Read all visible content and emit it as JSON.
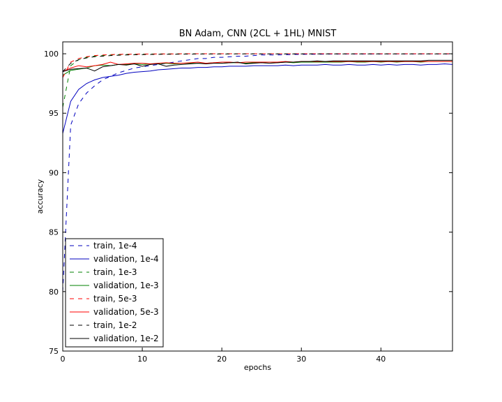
{
  "chart_data": {
    "type": "line",
    "title": "BN Adam, CNN (2CL + 1HL) MNIST",
    "xlabel": "epochs",
    "ylabel": "accuracy",
    "xlim": [
      0,
      49
    ],
    "ylim": [
      75,
      101
    ],
    "x_ticks": [
      "0",
      "10",
      "20",
      "30",
      "40"
    ],
    "y_ticks": [
      "75",
      "80",
      "85",
      "90",
      "95",
      "100"
    ],
    "grid": false,
    "legend_position": "lower-left",
    "x": [
      0,
      1,
      2,
      3,
      4,
      5,
      6,
      7,
      8,
      9,
      10,
      11,
      12,
      13,
      14,
      15,
      16,
      17,
      18,
      19,
      20,
      21,
      22,
      23,
      24,
      25,
      26,
      27,
      28,
      29,
      30,
      31,
      32,
      33,
      34,
      35,
      36,
      37,
      38,
      39,
      40,
      41,
      42,
      43,
      44,
      45,
      46,
      47,
      48,
      49
    ],
    "series": [
      {
        "name": "train, 1e-4",
        "color": "#0000bf",
        "dash": true,
        "values": [
          80.0,
          94.0,
          95.8,
          96.7,
          97.3,
          97.8,
          98.1,
          98.4,
          98.6,
          98.8,
          98.9,
          99.0,
          99.1,
          99.2,
          99.3,
          99.4,
          99.5,
          99.6,
          99.6,
          99.7,
          99.7,
          99.75,
          99.8,
          99.8,
          99.85,
          99.9,
          99.9,
          99.9,
          99.92,
          99.94,
          99.95,
          99.96,
          99.96,
          99.97,
          99.97,
          99.98,
          99.98,
          99.98,
          99.98,
          99.98,
          99.98,
          99.99,
          99.99,
          99.99,
          99.99,
          99.99,
          99.99,
          99.99,
          99.99,
          99.99
        ]
      },
      {
        "name": "validation, 1e-4",
        "color": "#0000bf",
        "dash": false,
        "values": [
          93.3,
          96.0,
          97.0,
          97.5,
          97.8,
          98.0,
          98.1,
          98.2,
          98.35,
          98.45,
          98.5,
          98.55,
          98.65,
          98.7,
          98.75,
          98.8,
          98.8,
          98.85,
          98.85,
          98.9,
          98.9,
          98.95,
          98.95,
          98.95,
          99.0,
          99.0,
          99.0,
          99.0,
          99.05,
          99.0,
          99.05,
          99.05,
          99.05,
          99.1,
          99.05,
          99.05,
          99.1,
          99.05,
          99.05,
          99.1,
          99.05,
          99.1,
          99.05,
          99.1,
          99.1,
          99.05,
          99.1,
          99.1,
          99.15,
          99.1
        ]
      },
      {
        "name": "train, 1e-3",
        "color": "#008000",
        "dash": true,
        "values": [
          95.5,
          99.0,
          99.5,
          99.7,
          99.8,
          99.85,
          99.9,
          99.93,
          99.95,
          99.96,
          99.97,
          99.98,
          99.98,
          99.99,
          99.99,
          99.99,
          100,
          100,
          100,
          100,
          100,
          100,
          100,
          100,
          100,
          100,
          100,
          100,
          100,
          100,
          100,
          100,
          100,
          100,
          100,
          100,
          100,
          100,
          100,
          100,
          100,
          100,
          100,
          100,
          100,
          100,
          100,
          100,
          100,
          100
        ]
      },
      {
        "name": "validation, 1e-3",
        "color": "#008000",
        "dash": false,
        "values": [
          98.2,
          98.6,
          98.7,
          98.8,
          99.0,
          99.05,
          99.0,
          99.1,
          99.1,
          99.15,
          99.1,
          99.15,
          99.15,
          99.2,
          99.15,
          99.2,
          99.2,
          99.2,
          99.2,
          99.25,
          99.2,
          99.25,
          99.25,
          99.2,
          99.25,
          99.25,
          99.3,
          99.25,
          99.3,
          99.25,
          99.3,
          99.3,
          99.3,
          99.3,
          99.3,
          99.3,
          99.35,
          99.3,
          99.3,
          99.35,
          99.3,
          99.35,
          99.3,
          99.35,
          99.35,
          99.3,
          99.35,
          99.35,
          99.35,
          99.35
        ]
      },
      {
        "name": "train, 5e-3",
        "color": "#ff0000",
        "dash": true,
        "values": [
          98.0,
          99.3,
          99.6,
          99.75,
          99.85,
          99.9,
          99.93,
          99.95,
          99.96,
          99.97,
          99.98,
          99.98,
          99.99,
          99.99,
          99.99,
          100,
          100,
          100,
          100,
          100,
          100,
          100,
          100,
          100,
          100,
          100,
          100,
          100,
          100,
          100,
          100,
          100,
          100,
          100,
          100,
          100,
          100,
          100,
          100,
          100,
          100,
          100,
          100,
          100,
          100,
          100,
          100,
          100,
          100,
          100
        ]
      },
      {
        "name": "validation, 5e-3",
        "color": "#ff0000",
        "dash": false,
        "values": [
          98.5,
          98.8,
          99.0,
          98.9,
          99.0,
          99.1,
          99.3,
          99.1,
          99.15,
          99.2,
          99.2,
          99.15,
          99.2,
          99.25,
          99.2,
          99.2,
          99.25,
          99.3,
          99.2,
          99.25,
          99.3,
          99.3,
          99.25,
          99.3,
          99.3,
          99.3,
          99.3,
          99.3,
          99.35,
          99.3,
          99.35,
          99.35,
          99.35,
          99.35,
          99.35,
          99.35,
          99.35,
          99.35,
          99.35,
          99.35,
          99.35,
          99.35,
          99.35,
          99.35,
          99.35,
          99.35,
          99.35,
          99.35,
          99.35,
          99.35
        ]
      },
      {
        "name": "train, 1e-2",
        "color": "#000000",
        "dash": true,
        "values": [
          98.5,
          99.2,
          99.5,
          99.65,
          99.75,
          99.8,
          99.85,
          99.88,
          99.9,
          99.92,
          99.93,
          99.94,
          99.95,
          99.96,
          99.96,
          99.97,
          99.97,
          99.98,
          99.98,
          99.98,
          99.98,
          99.98,
          99.99,
          99.99,
          99.99,
          99.99,
          99.99,
          99.99,
          99.99,
          99.99,
          99.99,
          99.99,
          99.99,
          99.99,
          99.99,
          99.99,
          99.99,
          99.99,
          99.99,
          99.99,
          99.99,
          99.99,
          99.99,
          99.99,
          99.99,
          99.99,
          99.99,
          99.99,
          99.99,
          99.99
        ]
      },
      {
        "name": "validation, 1e-2",
        "color": "#000000",
        "dash": false,
        "values": [
          98.5,
          98.7,
          98.75,
          98.8,
          98.55,
          98.9,
          99.0,
          99.1,
          99.05,
          99.15,
          98.95,
          99.1,
          99.15,
          98.95,
          99.05,
          99.1,
          99.15,
          99.2,
          99.15,
          99.2,
          99.2,
          99.25,
          99.3,
          99.15,
          99.2,
          99.25,
          99.2,
          99.25,
          99.3,
          99.3,
          99.35,
          99.35,
          99.4,
          99.35,
          99.4,
          99.4,
          99.4,
          99.4,
          99.4,
          99.4,
          99.4,
          99.4,
          99.4,
          99.4,
          99.4,
          99.4,
          99.45,
          99.45,
          99.45,
          99.45
        ]
      }
    ]
  }
}
